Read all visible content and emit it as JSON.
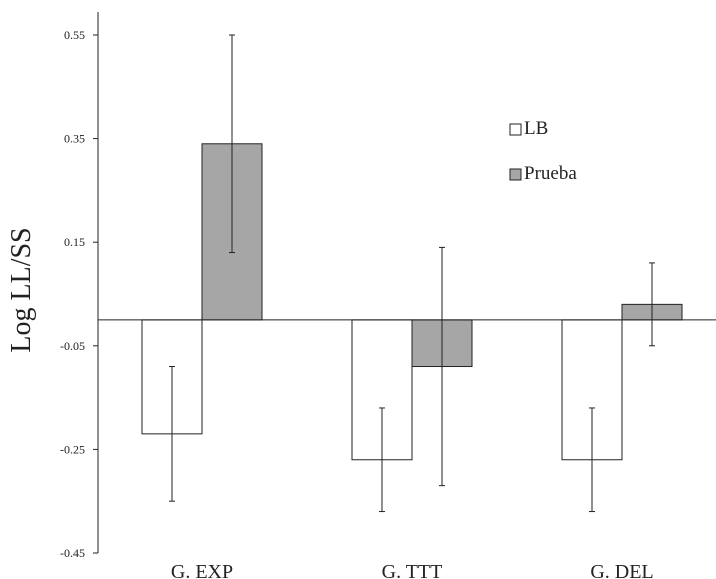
{
  "chart_data": {
    "type": "bar",
    "title": "",
    "xlabel": "",
    "ylabel": "Log LL/SS",
    "ylim": [
      -0.45,
      0.55
    ],
    "yticks": [
      "0.55",
      "0.35",
      "0.15",
      "-0.05",
      "-0.25",
      "-0.45"
    ],
    "categories": [
      "G. EXP",
      "G. TTT",
      "G. DEL"
    ],
    "series": [
      {
        "name": "LB",
        "color": "#ffffff",
        "values": [
          -0.22,
          -0.27,
          -0.27
        ],
        "err_low": [
          -0.35,
          -0.37,
          -0.37
        ],
        "err_high": [
          -0.09,
          -0.17,
          -0.17
        ]
      },
      {
        "name": "Prueba",
        "color": "#a6a6a6",
        "values": [
          0.34,
          -0.09,
          0.03
        ],
        "err_low": [
          0.13,
          -0.32,
          -0.05
        ],
        "err_high": [
          0.55,
          0.14,
          0.11
        ]
      }
    ],
    "baseline": 0,
    "legend": "right-upper",
    "grid": false
  }
}
